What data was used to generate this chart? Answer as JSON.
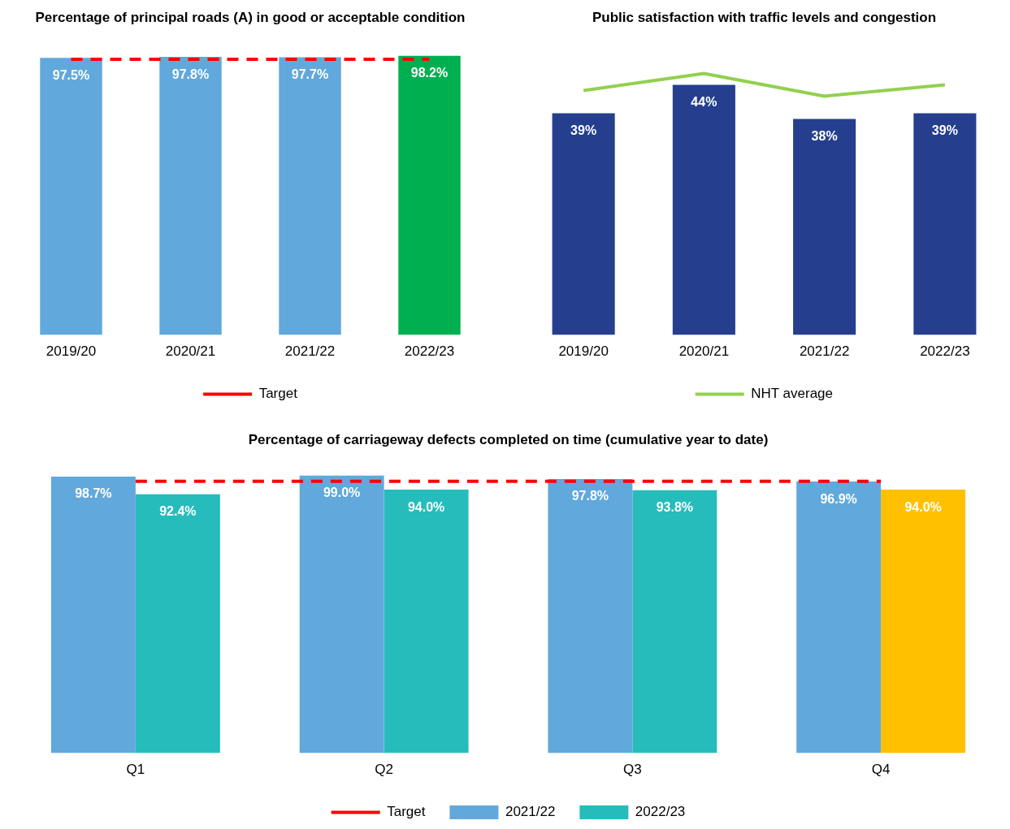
{
  "chart_data": [
    {
      "type": "bar",
      "title": "Percentage of principal roads (A) in good or acceptable condition",
      "categories": [
        "2019/20",
        "2020/21",
        "2021/22",
        "2022/23"
      ],
      "tick_labels": "x",
      "grid": false,
      "legend": "bottom",
      "series": [
        {
          "colors": [
            "#61a8dc",
            "#61a8dc",
            "#61a8dc",
            "#00b050"
          ],
          "values": [
            97.5,
            97.8,
            97.7,
            98.2
          ],
          "value_labels": [
            "97.5%",
            "97.8%",
            "97.7%",
            "98.2%"
          ]
        },
        {
          "name": "Target",
          "type": "line",
          "color": "#ff0000",
          "line_style": "dashed",
          "marker": "none",
          "values": [
            97,
            97,
            97,
            97
          ]
        }
      ]
    },
    {
      "type": "bar",
      "title": "Public satisfaction with traffic levels and congestion",
      "categories": [
        "2019/20",
        "2020/21",
        "2021/22",
        "2022/23"
      ],
      "tick_labels": "x",
      "grid": false,
      "legend": "bottom",
      "series": [
        {
          "color": "#253f8e",
          "values": [
            39,
            44,
            38,
            39
          ],
          "value_labels": [
            "39%",
            "44%",
            "38%",
            "39%"
          ]
        },
        {
          "name": "NHT average",
          "type": "line",
          "color": "#92d050",
          "line_style": "solid",
          "marker": "none",
          "values": [
            43,
            46,
            42,
            44
          ]
        }
      ]
    },
    {
      "type": "bar",
      "title": "Percentage of carriageway defects completed on time (cumulative year to date)",
      "categories": [
        "Q1",
        "Q2",
        "Q3",
        "Q4"
      ],
      "tick_labels": "x",
      "grid": false,
      "legend": "bottom",
      "series": [
        {
          "name": "2021/22",
          "color": "#61a8dc",
          "values": [
            98.7,
            99.0,
            97.8,
            96.9
          ],
          "value_labels": [
            "98.7%",
            "99.0%",
            "97.8%",
            "96.9%"
          ]
        },
        {
          "name": "2022/23",
          "colors": [
            "#26bcbc",
            "#26bcbc",
            "#26bcbc",
            "#ffc000"
          ],
          "values": [
            92.4,
            94.0,
            93.8,
            94.0
          ],
          "value_labels": [
            "92.4%",
            "94.0%",
            "93.8%",
            "94.0%"
          ]
        },
        {
          "name": "Target",
          "type": "line",
          "color": "#ff0000",
          "line_style": "dashed",
          "marker": "none",
          "values": [
            97,
            97,
            97,
            97
          ]
        }
      ]
    }
  ]
}
